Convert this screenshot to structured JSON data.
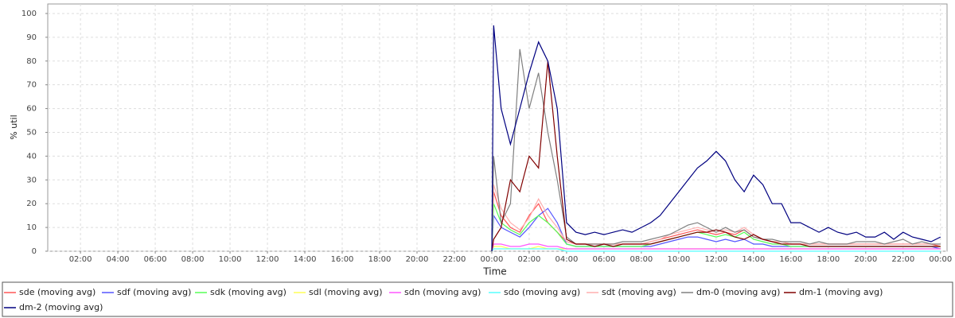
{
  "chart_data": {
    "type": "line",
    "x_label": "Time",
    "y_label": "% util",
    "xlim": [
      0.25,
      48.35
    ],
    "ylim": [
      0,
      104
    ],
    "xticks": [
      {
        "value": 2,
        "label": "02:00"
      },
      {
        "value": 4,
        "label": "04:00"
      },
      {
        "value": 6,
        "label": "06:00"
      },
      {
        "value": 8,
        "label": "08:00"
      },
      {
        "value": 10,
        "label": "10:00"
      },
      {
        "value": 12,
        "label": "12:00"
      },
      {
        "value": 14,
        "label": "14:00"
      },
      {
        "value": 16,
        "label": "16:00"
      },
      {
        "value": 18,
        "label": "18:00"
      },
      {
        "value": 20,
        "label": "20:00"
      },
      {
        "value": 22,
        "label": "22:00"
      },
      {
        "value": 24,
        "label": "00:00"
      },
      {
        "value": 26,
        "label": "02:00"
      },
      {
        "value": 28,
        "label": "04:00"
      },
      {
        "value": 30,
        "label": "06:00"
      },
      {
        "value": 32,
        "label": "08:00"
      },
      {
        "value": 34,
        "label": "10:00"
      },
      {
        "value": 36,
        "label": "12:00"
      },
      {
        "value": 38,
        "label": "14:00"
      },
      {
        "value": 40,
        "label": "16:00"
      },
      {
        "value": 42,
        "label": "18:00"
      },
      {
        "value": 44,
        "label": "20:00"
      },
      {
        "value": 46,
        "label": "22:00"
      },
      {
        "value": 48,
        "label": "00:00"
      }
    ],
    "yticks": [
      0,
      10,
      20,
      30,
      40,
      50,
      60,
      70,
      80,
      90,
      100
    ],
    "grid": true,
    "x": [
      24.0,
      24.1,
      24.5,
      25.0,
      25.5,
      26.0,
      26.5,
      27.0,
      27.5,
      28.0,
      28.5,
      29.0,
      29.5,
      30.0,
      30.5,
      31.0,
      31.5,
      32.0,
      32.5,
      33.0,
      33.5,
      34.0,
      34.5,
      35.0,
      35.5,
      36.0,
      36.5,
      37.0,
      37.5,
      38.0,
      38.5,
      39.0,
      39.5,
      40.0,
      40.5,
      41.0,
      41.5,
      42.0,
      42.5,
      43.0,
      43.5,
      44.0,
      44.5,
      45.0,
      45.5,
      46.0,
      46.5,
      47.0,
      47.5,
      48.0
    ],
    "series": [
      {
        "name": "sde (moving avg)",
        "color": "#ff5555",
        "values": [
          0,
          25,
          15,
          10,
          8,
          15,
          20,
          12,
          8,
          4,
          3,
          3,
          3,
          3,
          3,
          3,
          3,
          3,
          4,
          5,
          6,
          7,
          8,
          9,
          8,
          7,
          8,
          7,
          9,
          6,
          5,
          4,
          4,
          3,
          3,
          3,
          3,
          3,
          3,
          3,
          3,
          3,
          3,
          3,
          3,
          3,
          3,
          3,
          3,
          2
        ]
      },
      {
        "name": "sdf (moving avg)",
        "color": "#5555ff",
        "values": [
          0,
          15,
          10,
          8,
          6,
          10,
          15,
          18,
          12,
          3,
          2,
          2,
          2,
          2,
          2,
          2,
          2,
          2,
          2,
          3,
          4,
          5,
          6,
          6,
          5,
          4,
          5,
          4,
          5,
          3,
          3,
          2,
          2,
          2,
          2,
          2,
          2,
          2,
          2,
          2,
          2,
          2,
          2,
          2,
          2,
          2,
          2,
          2,
          2,
          1
        ]
      },
      {
        "name": "sdk (moving avg)",
        "color": "#55ff55",
        "values": [
          0,
          20,
          12,
          9,
          7,
          12,
          15,
          12,
          8,
          3,
          2,
          2,
          2,
          2,
          2,
          2,
          2,
          2,
          3,
          4,
          5,
          6,
          7,
          8,
          7,
          6,
          7,
          6,
          8,
          5,
          4,
          3,
          3,
          2,
          2,
          2,
          2,
          2,
          2,
          2,
          2,
          2,
          2,
          2,
          2,
          2,
          2,
          2,
          2,
          2
        ]
      },
      {
        "name": "sdl (moving avg)",
        "color": "#ffff55",
        "values": [
          0,
          2,
          2,
          1,
          1,
          1,
          2,
          1,
          1,
          1,
          1,
          1,
          1,
          1,
          1,
          1,
          1,
          1,
          1,
          1,
          1,
          1,
          1,
          1,
          1,
          1,
          1,
          1,
          1,
          1,
          1,
          1,
          1,
          1,
          1,
          1,
          1,
          1,
          1,
          1,
          1,
          1,
          1,
          1,
          1,
          1,
          1,
          1,
          1,
          1
        ]
      },
      {
        "name": "sdn (moving avg)",
        "color": "#ff55ff",
        "values": [
          0,
          3,
          3,
          2,
          2,
          3,
          3,
          2,
          2,
          1,
          1,
          1,
          1,
          1,
          1,
          1,
          1,
          1,
          1,
          1,
          1,
          1,
          1,
          1,
          1,
          1,
          1,
          1,
          1,
          1,
          1,
          1,
          1,
          1,
          1,
          1,
          1,
          1,
          1,
          1,
          1,
          1,
          1,
          1,
          1,
          1,
          1,
          1,
          1,
          1
        ]
      },
      {
        "name": "sdo (moving avg)",
        "color": "#55ffff",
        "values": [
          0,
          1,
          1,
          1,
          1,
          1,
          1,
          1,
          1,
          0,
          0,
          0,
          0,
          0,
          0,
          0,
          0,
          0,
          0,
          0,
          0,
          0,
          0,
          0,
          0,
          0,
          0,
          0,
          0,
          0,
          0,
          0,
          0,
          0,
          0,
          0,
          0,
          0,
          0,
          0,
          0,
          0,
          0,
          0,
          0,
          0,
          0,
          0,
          0,
          0
        ]
      },
      {
        "name": "sdt (moving avg)",
        "color": "#ffafaf",
        "values": [
          0,
          28,
          18,
          12,
          9,
          14,
          22,
          15,
          10,
          4,
          3,
          3,
          3,
          3,
          3,
          3,
          3,
          3,
          4,
          5,
          7,
          8,
          9,
          10,
          9,
          8,
          9,
          8,
          10,
          7,
          5,
          4,
          4,
          3,
          3,
          3,
          3,
          3,
          3,
          3,
          3,
          3,
          3,
          3,
          3,
          3,
          3,
          3,
          3,
          3
        ]
      },
      {
        "name": "dm-0 (moving avg)",
        "color": "#808080",
        "values": [
          0,
          40,
          12,
          20,
          85,
          60,
          75,
          50,
          30,
          6,
          3,
          3,
          3,
          3,
          3,
          4,
          4,
          4,
          5,
          6,
          7,
          9,
          11,
          12,
          10,
          8,
          10,
          8,
          9,
          6,
          5,
          5,
          4,
          4,
          4,
          3,
          4,
          3,
          3,
          3,
          4,
          4,
          4,
          3,
          4,
          5,
          3,
          4,
          3,
          3
        ]
      },
      {
        "name": "dm-1 (moving avg)",
        "color": "#800000",
        "values": [
          0,
          5,
          10,
          30,
          25,
          40,
          35,
          80,
          40,
          5,
          3,
          3,
          2,
          3,
          2,
          3,
          3,
          3,
          3,
          4,
          5,
          6,
          7,
          8,
          8,
          9,
          8,
          6,
          5,
          7,
          5,
          4,
          3,
          3,
          3,
          2,
          2,
          2,
          2,
          2,
          2,
          2,
          2,
          2,
          2,
          2,
          2,
          2,
          2,
          2
        ]
      },
      {
        "name": "dm-2 (moving avg)",
        "color": "#000080",
        "values": [
          0,
          95,
          60,
          45,
          60,
          75,
          88,
          80,
          60,
          12,
          8,
          7,
          8,
          7,
          8,
          9,
          8,
          10,
          12,
          15,
          20,
          25,
          30,
          35,
          38,
          42,
          38,
          30,
          25,
          32,
          28,
          20,
          20,
          12,
          12,
          10,
          8,
          10,
          8,
          7,
          8,
          6,
          6,
          8,
          5,
          8,
          6,
          5,
          4,
          6
        ]
      }
    ]
  }
}
